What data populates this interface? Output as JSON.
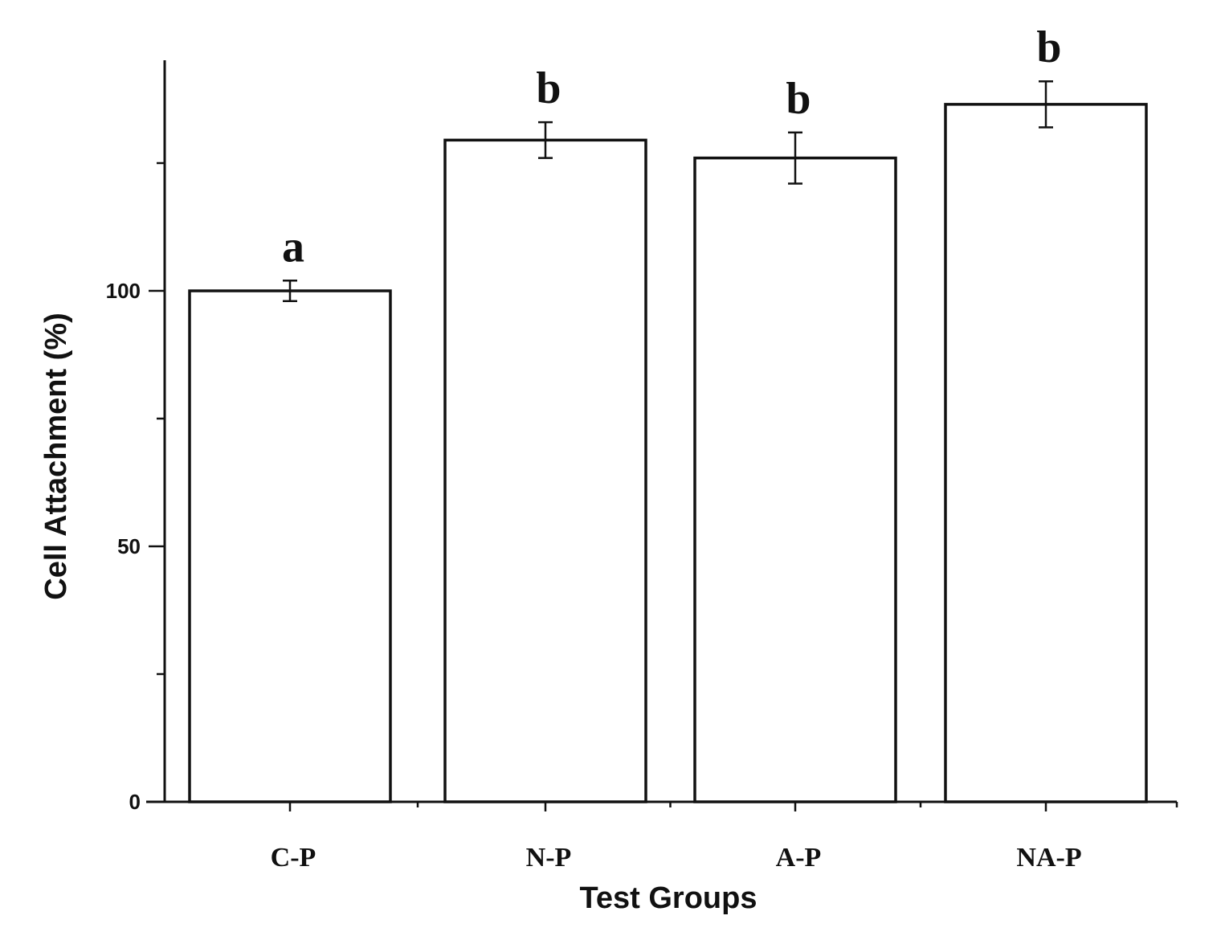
{
  "chart_data": {
    "type": "bar",
    "categories": [
      "C-P",
      "N-P",
      "A-P",
      "NA-P"
    ],
    "values": [
      100,
      129.5,
      126,
      136.5
    ],
    "errors": [
      2.0,
      3.5,
      5.0,
      4.5
    ],
    "significance_labels": [
      "a",
      "b",
      "b",
      "b"
    ],
    "xlabel": "Test Groups",
    "ylabel": "Cell Attachment (%)",
    "yticks": [
      0,
      50,
      100
    ],
    "yticks_minor": [
      25,
      75,
      125
    ],
    "ylim": [
      0,
      145
    ],
    "grid": false,
    "bar_fill": "#ffffff",
    "bar_stroke": "#111111"
  }
}
